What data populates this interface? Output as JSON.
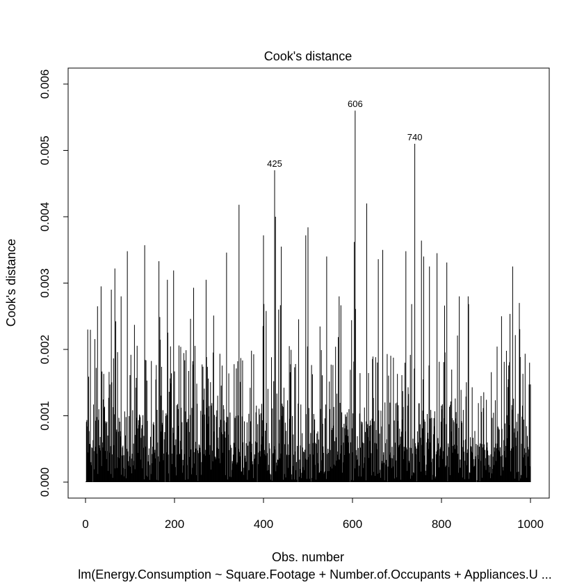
{
  "chart_data": {
    "type": "bar",
    "title": "Cook's distance",
    "xlabel": "Obs. number",
    "ylabel": "Cook's distance",
    "subtitle": "lm(Energy.Consumption ~ Square.Footage + Number.of.Occupants + Appliances.U ...",
    "n": 1000,
    "xlim": [
      0,
      1000
    ],
    "ylim": [
      0,
      0.006
    ],
    "x_ticks": [
      0,
      200,
      400,
      600,
      800,
      1000
    ],
    "y_ticks": [
      "0.000",
      "0.001",
      "0.002",
      "0.003",
      "0.004",
      "0.005",
      "0.006"
    ],
    "seed": 12345,
    "highlighted": [
      {
        "obs": 425,
        "value": 0.0047,
        "label": "425"
      },
      {
        "obs": 606,
        "value": 0.0056,
        "label": "606"
      },
      {
        "obs": 740,
        "value": 0.0051,
        "label": "740"
      }
    ],
    "notable": [
      {
        "obs": 5,
        "value": 0.0023
      },
      {
        "obs": 27,
        "value": 0.00265
      },
      {
        "obs": 35,
        "value": 0.00295
      },
      {
        "obs": 58,
        "value": 0.0029
      },
      {
        "obs": 66,
        "value": 0.00322
      },
      {
        "obs": 80,
        "value": 0.0028
      },
      {
        "obs": 94,
        "value": 0.00348
      },
      {
        "obs": 133,
        "value": 0.00357
      },
      {
        "obs": 165,
        "value": 0.00333
      },
      {
        "obs": 184,
        "value": 0.00305
      },
      {
        "obs": 198,
        "value": 0.00319
      },
      {
        "obs": 243,
        "value": 0.00293
      },
      {
        "obs": 271,
        "value": 0.00305
      },
      {
        "obs": 317,
        "value": 0.00346
      },
      {
        "obs": 345,
        "value": 0.00418
      },
      {
        "obs": 400,
        "value": 0.00372
      },
      {
        "obs": 427,
        "value": 0.004
      },
      {
        "obs": 440,
        "value": 0.00355
      },
      {
        "obs": 495,
        "value": 0.00372
      },
      {
        "obs": 500,
        "value": 0.00384
      },
      {
        "obs": 542,
        "value": 0.0034
      },
      {
        "obs": 570,
        "value": 0.0028
      },
      {
        "obs": 604,
        "value": 0.00362
      },
      {
        "obs": 632,
        "value": 0.0042
      },
      {
        "obs": 658,
        "value": 0.00336
      },
      {
        "obs": 668,
        "value": 0.0035
      },
      {
        "obs": 720,
        "value": 0.00348
      },
      {
        "obs": 755,
        "value": 0.00364
      },
      {
        "obs": 760,
        "value": 0.0034
      },
      {
        "obs": 773,
        "value": 0.00325
      },
      {
        "obs": 790,
        "value": 0.00345
      },
      {
        "obs": 812,
        "value": 0.00331
      },
      {
        "obs": 840,
        "value": 0.0028
      },
      {
        "obs": 860,
        "value": 0.0028
      },
      {
        "obs": 935,
        "value": 0.0025
      },
      {
        "obs": 960,
        "value": 0.00325
      },
      {
        "obs": 975,
        "value": 0.0027
      },
      {
        "obs": 998,
        "value": 0.0018
      }
    ]
  }
}
